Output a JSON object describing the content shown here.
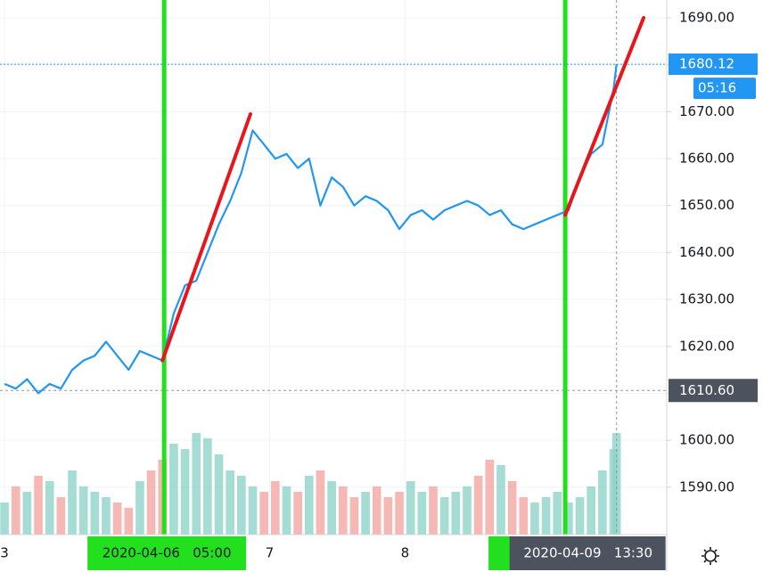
{
  "chart_data": {
    "type": "line",
    "x": [
      0,
      2,
      4,
      6,
      8,
      10,
      12,
      14,
      16,
      18,
      20,
      22,
      24,
      26,
      28,
      30,
      32,
      34,
      36,
      38,
      40,
      42,
      44,
      46,
      48,
      50,
      52,
      54,
      56,
      58,
      60,
      62,
      64,
      66,
      68,
      70,
      72,
      74,
      76,
      78,
      80,
      82,
      84,
      86,
      88,
      90,
      92,
      94,
      96,
      98,
      100,
      102,
      104,
      106,
      108,
      108.5
    ],
    "price": {
      "color": "#2196f3",
      "values": [
        1612,
        1611,
        1613,
        1610,
        1612,
        1611,
        1615,
        1617,
        1618,
        1621,
        1618,
        1615,
        1619,
        1618,
        1617,
        1627,
        1633,
        1634,
        1640,
        1646,
        1651,
        1657,
        1666,
        1663,
        1660,
        1661,
        1658,
        1660,
        1650,
        1656,
        1654,
        1650,
        1652,
        1651,
        1649,
        1645,
        1648,
        1649,
        1647,
        1649,
        1650,
        1651,
        1650,
        1648,
        1649,
        1646,
        1645,
        1646,
        1647,
        1648,
        1649,
        1656,
        1661,
        1663,
        1675,
        1680.12
      ]
    },
    "volume": {
      "up_color": "#8fd3c9",
      "down_color": "#f4a6a3",
      "ylim": [
        0,
        100
      ],
      "values": [
        30,
        45,
        40,
        55,
        50,
        35,
        60,
        45,
        40,
        35,
        30,
        25,
        50,
        60,
        70,
        85,
        80,
        95,
        90,
        75,
        60,
        55,
        45,
        40,
        50,
        45,
        40,
        55,
        60,
        50,
        45,
        35,
        40,
        45,
        35,
        40,
        50,
        40,
        45,
        35,
        40,
        45,
        55,
        70,
        65,
        50,
        35,
        30,
        35,
        40,
        30,
        35,
        45,
        60,
        80,
        95
      ]
    },
    "xlim": [
      -0.8,
      117.4
    ],
    "xticks": [
      {
        "value": 0,
        "label": "3"
      },
      {
        "value": 47,
        "label": "7"
      },
      {
        "value": 71,
        "label": "8"
      }
    ],
    "ylim": [
      1579.9,
      1693.8
    ],
    "yticks": [
      {
        "value": 1590,
        "label": "1590.00"
      },
      {
        "value": 1600,
        "label": "1600.00"
      },
      {
        "value": 1610,
        "label": "1610.00"
      },
      {
        "value": 1620,
        "label": "1620.00"
      },
      {
        "value": 1630,
        "label": "1630.00"
      },
      {
        "value": 1640,
        "label": "1640.00"
      },
      {
        "value": 1650,
        "label": "1650.00"
      },
      {
        "value": 1660,
        "label": "1660.00"
      },
      {
        "value": 1670,
        "label": "1670.00"
      },
      {
        "value": 1680,
        "label": "1680.00"
      },
      {
        "value": 1690,
        "label": "1690.00"
      }
    ],
    "grid": true,
    "trend_lines": [
      {
        "color": "#e8161b",
        "x": [
          28,
          43.6
        ],
        "y": [
          1617,
          1669.5
        ]
      },
      {
        "color": "#e8161b",
        "x": [
          99.4,
          113.3
        ],
        "y": [
          1648,
          1690
        ]
      }
    ],
    "markers": [
      {
        "color": "#22e01d",
        "x": 28.3,
        "label": "2020-04-06   05:00"
      },
      {
        "color": "#22e01d",
        "x": 99.4
      }
    ],
    "last_price": {
      "value": 1680.12,
      "label": "1680.12",
      "countdown": "05:16",
      "color": "#2196f3"
    },
    "crosshair": {
      "x": 108.5,
      "y": 1610.6,
      "x_label": "2020-04-09   13:30",
      "y_label": "1610.60",
      "color": "#4c525e"
    }
  }
}
